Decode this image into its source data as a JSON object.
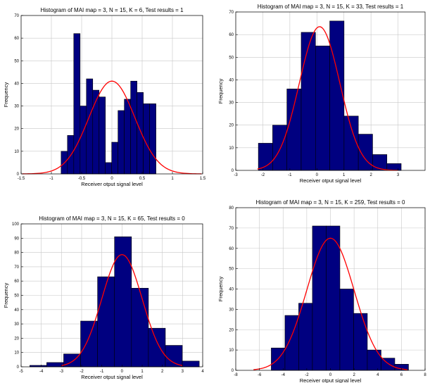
{
  "chart_data": [
    {
      "type": "bar",
      "title": "Histogram of MAI  map = 3, N = 15, K = 6,  Test results = 1",
      "xlabel": "Receiver otput signal level",
      "ylabel": "Frequency",
      "xlim": [
        -1.5,
        1.5
      ],
      "ylim": [
        0,
        70
      ],
      "xticks": [
        "-1.5",
        "-1",
        "-0.5",
        "0",
        "0.5",
        "1",
        "1.5"
      ],
      "yticks": [
        "0",
        "10",
        "20",
        "30",
        "40",
        "50",
        "60",
        "70"
      ],
      "grid": true,
      "bin_width": 0.1045,
      "bins": [
        {
          "x": -0.7867,
          "value": 10
        },
        {
          "x": -0.6822,
          "value": 17
        },
        {
          "x": -0.5778,
          "value": 62
        },
        {
          "x": -0.4733,
          "value": 30
        },
        {
          "x": -0.3689,
          "value": 42
        },
        {
          "x": -0.2644,
          "value": 37
        },
        {
          "x": -0.16,
          "value": 34
        },
        {
          "x": -0.0555,
          "value": 5
        },
        {
          "x": 0.0489,
          "value": 14
        },
        {
          "x": 0.1534,
          "value": 28
        },
        {
          "x": 0.2578,
          "value": 33
        },
        {
          "x": 0.3623,
          "value": 41
        },
        {
          "x": 0.4667,
          "value": 36
        },
        {
          "x": 0.5712,
          "value": 31
        },
        {
          "x": 0.6756,
          "value": 31
        }
      ],
      "fit": {
        "type": "normal",
        "mean": 0.0,
        "sd": 0.38,
        "peak": 41,
        "xrange": [
          -1.48,
          1.48
        ]
      }
    },
    {
      "type": "bar",
      "title": "Histogram of MAI  map = 3, N = 15, K = 33,  Test results = 1",
      "xlabel": "Receiver otput signal level",
      "ylabel": "Frequency",
      "xlim": [
        -3,
        4
      ],
      "ylim": [
        0,
        70
      ],
      "xticks": [
        "-3",
        "-2",
        "-1",
        "0",
        "1",
        "2",
        "3"
      ],
      "yticks": [
        "0",
        "10",
        "20",
        "30",
        "40",
        "50",
        "60",
        "70"
      ],
      "grid": true,
      "bin_width": 0.528,
      "bins": [
        {
          "x": -1.9,
          "value": 12
        },
        {
          "x": -1.372,
          "value": 20
        },
        {
          "x": -0.844,
          "value": 36
        },
        {
          "x": -0.316,
          "value": 61
        },
        {
          "x": 0.212,
          "value": 55
        },
        {
          "x": 0.74,
          "value": 66
        },
        {
          "x": 1.268,
          "value": 24
        },
        {
          "x": 1.796,
          "value": 16
        },
        {
          "x": 2.324,
          "value": 7
        },
        {
          "x": 2.852,
          "value": 3
        }
      ],
      "fit": {
        "type": "normal",
        "mean": 0.1,
        "sd": 0.75,
        "peak": 63.5,
        "xrange": [
          -2.2,
          3.0
        ]
      }
    },
    {
      "type": "bar",
      "title": "Histogram of MAI  map = 3, N = 15, K = 65,  Test results = 0",
      "xlabel": "Receiver otput signal level",
      "ylabel": "Frequency",
      "xlim": [
        -5,
        4
      ],
      "ylim": [
        0,
        100
      ],
      "xticks": [
        "-5",
        "-4",
        "-3",
        "-2",
        "-1",
        "0",
        "1",
        "2",
        "3",
        "4"
      ],
      "yticks": [
        "0",
        "10",
        "20",
        "30",
        "40",
        "50",
        "60",
        "70",
        "80",
        "90",
        "100"
      ],
      "grid": true,
      "bin_width": 0.84,
      "bins": [
        {
          "x": -4.15,
          "value": 1
        },
        {
          "x": -3.31,
          "value": 3
        },
        {
          "x": -2.47,
          "value": 9
        },
        {
          "x": -1.63,
          "value": 32
        },
        {
          "x": -0.79,
          "value": 63
        },
        {
          "x": 0.05,
          "value": 91
        },
        {
          "x": 0.89,
          "value": 55
        },
        {
          "x": 1.73,
          "value": 27
        },
        {
          "x": 2.57,
          "value": 15
        },
        {
          "x": 3.41,
          "value": 4
        }
      ],
      "fit": {
        "type": "normal",
        "mean": 0.0,
        "sd": 1.0,
        "peak": 78.5,
        "xrange": [
          -3.0,
          3.0
        ]
      }
    },
    {
      "type": "bar",
      "title": "Histogram of MAI  map = 3, N = 15, K = 259,  Test results = 0",
      "xlabel": "Receiver otput signal level",
      "ylabel": "Frequency",
      "xlim": [
        -8,
        8
      ],
      "ylim": [
        0,
        80
      ],
      "xticks": [
        "-8",
        "-6",
        "-4",
        "-2",
        "0",
        "2",
        "4",
        "6",
        "8"
      ],
      "yticks": [
        "0",
        "10",
        "20",
        "30",
        "40",
        "50",
        "60",
        "70",
        "80"
      ],
      "grid": true,
      "bin_width": 1.16,
      "bins": [
        {
          "x": -4.42,
          "value": 11
        },
        {
          "x": -3.26,
          "value": 27
        },
        {
          "x": -2.1,
          "value": 33
        },
        {
          "x": -0.94,
          "value": 71
        },
        {
          "x": 0.22,
          "value": 71
        },
        {
          "x": 1.38,
          "value": 40
        },
        {
          "x": 2.54,
          "value": 28
        },
        {
          "x": 3.7,
          "value": 10
        },
        {
          "x": 4.86,
          "value": 6
        },
        {
          "x": 6.02,
          "value": 3
        }
      ],
      "fit": {
        "type": "normal",
        "mean": 0.0,
        "sd": 2.0,
        "peak": 65,
        "xrange": [
          -6.5,
          6.5
        ]
      }
    }
  ],
  "colors": {
    "bar_fill": "#000080",
    "bar_edge": "#000000",
    "fit_line": "#ff0000",
    "grid": "#c8c8c8",
    "axes": "#000000"
  }
}
